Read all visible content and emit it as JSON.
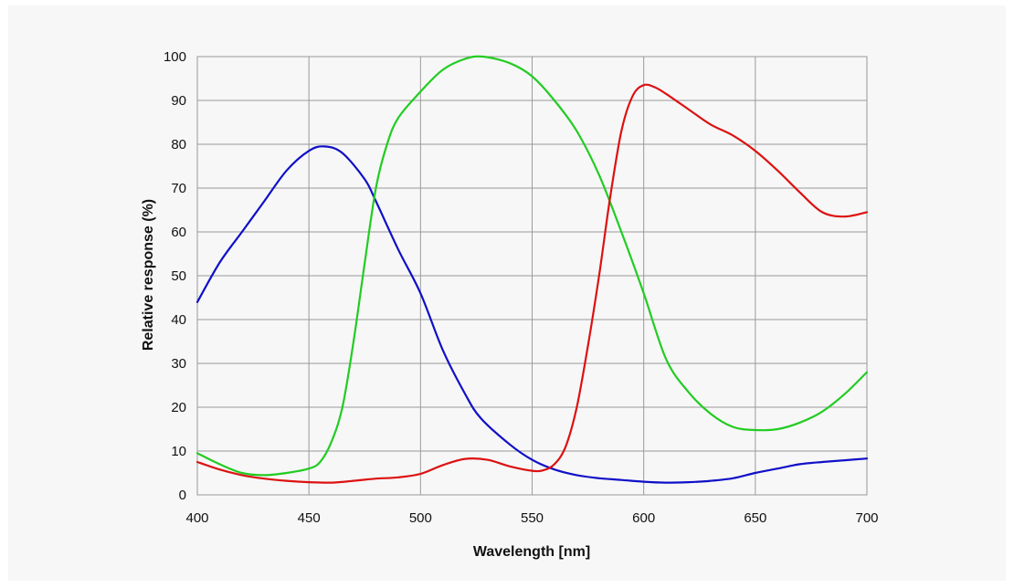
{
  "chart_data": {
    "type": "line",
    "title": "",
    "xlabel": "Wavelength [nm]",
    "ylabel": "Relative response (%)",
    "xlim": [
      400,
      700
    ],
    "ylim": [
      0,
      100
    ],
    "xticks": [
      400,
      450,
      500,
      550,
      600,
      650,
      700
    ],
    "yticks": [
      0,
      10,
      20,
      30,
      40,
      50,
      60,
      70,
      80,
      90,
      100
    ],
    "grid": true,
    "legend": "none",
    "series": [
      {
        "color": "#1010c8",
        "points": [
          [
            400,
            44
          ],
          [
            410,
            53
          ],
          [
            420,
            60
          ],
          [
            430,
            67
          ],
          [
            440,
            74
          ],
          [
            450,
            78.5
          ],
          [
            457,
            79.5
          ],
          [
            465,
            78
          ],
          [
            475,
            72
          ],
          [
            480,
            67
          ],
          [
            490,
            56
          ],
          [
            500,
            46
          ],
          [
            510,
            33
          ],
          [
            520,
            23
          ],
          [
            527,
            17.5
          ],
          [
            540,
            11.5
          ],
          [
            550,
            8
          ],
          [
            560,
            5.8
          ],
          [
            570,
            4.5
          ],
          [
            580,
            3.8
          ],
          [
            590,
            3.4
          ],
          [
            600,
            3
          ],
          [
            610,
            2.8
          ],
          [
            620,
            2.9
          ],
          [
            630,
            3.2
          ],
          [
            640,
            3.8
          ],
          [
            650,
            5
          ],
          [
            660,
            6
          ],
          [
            670,
            7
          ],
          [
            680,
            7.5
          ],
          [
            690,
            7.9
          ],
          [
            700,
            8.3
          ]
        ]
      },
      {
        "color": "#22cc22",
        "points": [
          [
            400,
            9.5
          ],
          [
            410,
            7
          ],
          [
            420,
            5
          ],
          [
            430,
            4.5
          ],
          [
            440,
            5
          ],
          [
            450,
            6
          ],
          [
            455,
            7.5
          ],
          [
            460,
            12
          ],
          [
            465,
            20
          ],
          [
            470,
            35
          ],
          [
            475,
            53
          ],
          [
            480,
            70
          ],
          [
            485,
            80
          ],
          [
            490,
            86
          ],
          [
            500,
            92
          ],
          [
            510,
            97
          ],
          [
            520,
            99.5
          ],
          [
            528,
            100
          ],
          [
            540,
            98.5
          ],
          [
            550,
            95.5
          ],
          [
            560,
            90
          ],
          [
            570,
            83
          ],
          [
            580,
            73
          ],
          [
            590,
            60
          ],
          [
            600,
            46
          ],
          [
            610,
            31
          ],
          [
            620,
            23.5
          ],
          [
            630,
            18.5
          ],
          [
            640,
            15.5
          ],
          [
            650,
            14.8
          ],
          [
            660,
            15
          ],
          [
            670,
            16.5
          ],
          [
            680,
            19
          ],
          [
            690,
            23
          ],
          [
            700,
            28
          ]
        ]
      },
      {
        "color": "#dd1111",
        "points": [
          [
            400,
            7.5
          ],
          [
            410,
            5.8
          ],
          [
            420,
            4.5
          ],
          [
            430,
            3.7
          ],
          [
            440,
            3.2
          ],
          [
            450,
            2.9
          ],
          [
            460,
            2.8
          ],
          [
            470,
            3.2
          ],
          [
            480,
            3.7
          ],
          [
            490,
            4
          ],
          [
            500,
            4.8
          ],
          [
            510,
            6.8
          ],
          [
            520,
            8.2
          ],
          [
            530,
            8
          ],
          [
            540,
            6.5
          ],
          [
            550,
            5.5
          ],
          [
            555,
            5.6
          ],
          [
            560,
            7
          ],
          [
            565,
            11
          ],
          [
            570,
            20
          ],
          [
            575,
            34
          ],
          [
            580,
            50
          ],
          [
            585,
            68
          ],
          [
            590,
            83
          ],
          [
            595,
            91
          ],
          [
            600,
            93.5
          ],
          [
            605,
            93
          ],
          [
            610,
            91.5
          ],
          [
            620,
            88
          ],
          [
            630,
            84.5
          ],
          [
            640,
            82
          ],
          [
            650,
            78.5
          ],
          [
            660,
            74
          ],
          [
            670,
            69
          ],
          [
            680,
            64.5
          ],
          [
            690,
            63.5
          ],
          [
            700,
            64.5
          ]
        ]
      }
    ]
  }
}
